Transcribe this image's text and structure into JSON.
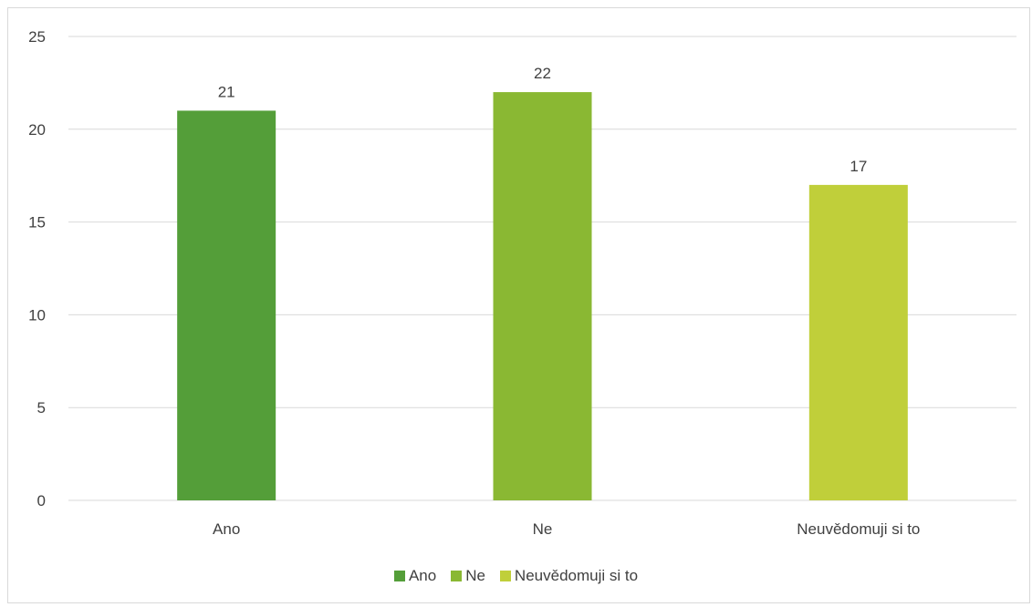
{
  "chart_data": {
    "type": "bar",
    "categories": [
      "Ano",
      "Ne",
      "Neuvědomuji si to"
    ],
    "values": [
      21,
      22,
      17
    ],
    "colors": [
      "#549e39",
      "#8ab833",
      "#c0cf3a"
    ],
    "ylim": [
      0,
      25
    ],
    "yticks": [
      0,
      5,
      10,
      15,
      20,
      25
    ],
    "grid": true,
    "legend_position": "bottom",
    "legend": [
      "Ano",
      "Ne",
      "Neuvědomuji si to"
    ],
    "title": "",
    "xlabel": "",
    "ylabel": ""
  }
}
